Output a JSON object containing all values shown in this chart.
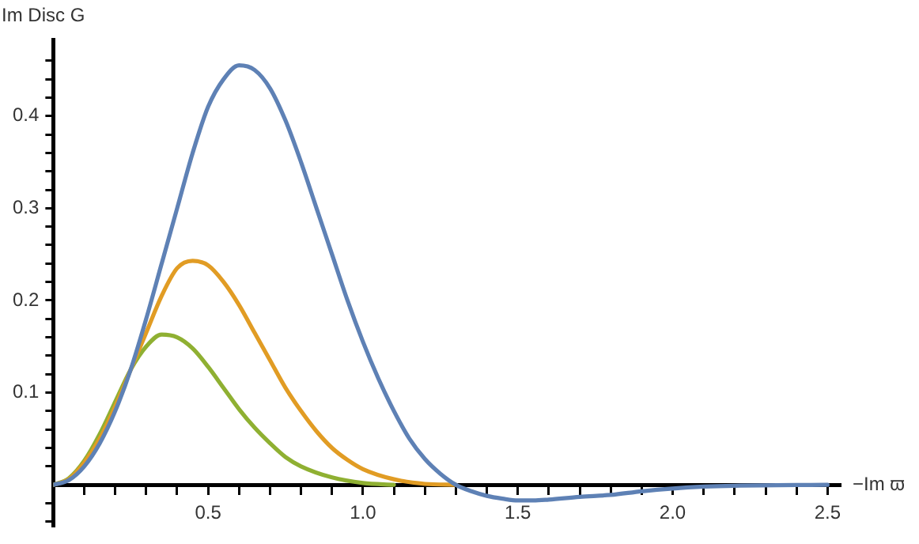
{
  "chart_data": {
    "type": "line",
    "xlabel": "−Im ϖ",
    "ylabel": "Im Disc G",
    "xlim": [
      0,
      2.54
    ],
    "ylim": [
      -0.045,
      0.483
    ],
    "xticks": [
      {
        "value": 0.1,
        "label": null
      },
      {
        "value": 0.2,
        "label": null
      },
      {
        "value": 0.3,
        "label": null
      },
      {
        "value": 0.4,
        "label": null
      },
      {
        "value": 0.5,
        "label": "0.5"
      },
      {
        "value": 0.6,
        "label": null
      },
      {
        "value": 0.7,
        "label": null
      },
      {
        "value": 0.8,
        "label": null
      },
      {
        "value": 0.9,
        "label": null
      },
      {
        "value": 1.0,
        "label": "1.0"
      },
      {
        "value": 1.1,
        "label": null
      },
      {
        "value": 1.2,
        "label": null
      },
      {
        "value": 1.3,
        "label": null
      },
      {
        "value": 1.4,
        "label": null
      },
      {
        "value": 1.5,
        "label": "1.5"
      },
      {
        "value": 1.6,
        "label": null
      },
      {
        "value": 1.7,
        "label": null
      },
      {
        "value": 1.8,
        "label": null
      },
      {
        "value": 1.9,
        "label": null
      },
      {
        "value": 2.0,
        "label": "2.0"
      },
      {
        "value": 2.1,
        "label": null
      },
      {
        "value": 2.2,
        "label": null
      },
      {
        "value": 2.3,
        "label": null
      },
      {
        "value": 2.4,
        "label": null
      },
      {
        "value": 2.5,
        "label": "2.5"
      }
    ],
    "yticks": [
      {
        "value": -0.04,
        "label": null
      },
      {
        "value": -0.02,
        "label": null
      },
      {
        "value": 0.02,
        "label": null
      },
      {
        "value": 0.04,
        "label": null
      },
      {
        "value": 0.06,
        "label": null
      },
      {
        "value": 0.08,
        "label": null
      },
      {
        "value": 0.1,
        "label": "0.1"
      },
      {
        "value": 0.12,
        "label": null
      },
      {
        "value": 0.14,
        "label": null
      },
      {
        "value": 0.16,
        "label": null
      },
      {
        "value": 0.18,
        "label": null
      },
      {
        "value": 0.2,
        "label": "0.2"
      },
      {
        "value": 0.22,
        "label": null
      },
      {
        "value": 0.24,
        "label": null
      },
      {
        "value": 0.26,
        "label": null
      },
      {
        "value": 0.28,
        "label": null
      },
      {
        "value": 0.3,
        "label": "0.3"
      },
      {
        "value": 0.32,
        "label": null
      },
      {
        "value": 0.34,
        "label": null
      },
      {
        "value": 0.36,
        "label": null
      },
      {
        "value": 0.38,
        "label": null
      },
      {
        "value": 0.4,
        "label": "0.4"
      },
      {
        "value": 0.42,
        "label": null
      },
      {
        "value": 0.44,
        "label": null
      },
      {
        "value": 0.46,
        "label": null
      }
    ],
    "grid": false,
    "legend": false,
    "marker": "none",
    "line_style": "solid",
    "series": [
      {
        "color": "#5e81b5",
        "x": [
          0,
          0.05,
          0.1,
          0.15,
          0.2,
          0.25,
          0.3,
          0.35,
          0.4,
          0.45,
          0.5,
          0.55,
          0.6,
          0.65,
          0.7,
          0.75,
          0.8,
          0.85,
          0.9,
          0.95,
          1.0,
          1.05,
          1.1,
          1.15,
          1.2,
          1.25,
          1.3,
          1.35,
          1.4,
          1.45,
          1.5,
          1.55,
          1.6,
          1.7,
          1.8,
          1.9,
          2.0,
          2.1,
          2.2,
          2.5
        ],
        "values": [
          0,
          0.005,
          0.02,
          0.045,
          0.08,
          0.125,
          0.18,
          0.24,
          0.3,
          0.36,
          0.41,
          0.44,
          0.455,
          0.45,
          0.43,
          0.395,
          0.35,
          0.3,
          0.25,
          0.2,
          0.155,
          0.115,
          0.08,
          0.05,
          0.028,
          0.012,
          0,
          -0.007,
          -0.012,
          -0.015,
          -0.017,
          -0.017,
          -0.016,
          -0.013,
          -0.011,
          -0.007,
          -0.004,
          -0.002,
          -0.001,
          0
        ]
      },
      {
        "color": "#e19c24",
        "x": [
          0,
          0.05,
          0.1,
          0.15,
          0.2,
          0.25,
          0.3,
          0.35,
          0.4,
          0.45,
          0.5,
          0.55,
          0.6,
          0.65,
          0.7,
          0.75,
          0.8,
          0.85,
          0.9,
          0.95,
          1.0,
          1.1,
          1.2,
          1.3
        ],
        "values": [
          0,
          0.006,
          0.024,
          0.05,
          0.085,
          0.125,
          0.165,
          0.205,
          0.235,
          0.243,
          0.238,
          0.22,
          0.195,
          0.165,
          0.135,
          0.105,
          0.08,
          0.058,
          0.04,
          0.027,
          0.017,
          0.006,
          0.001,
          0
        ]
      },
      {
        "color": "#8fb032",
        "x": [
          0,
          0.05,
          0.1,
          0.15,
          0.2,
          0.25,
          0.3,
          0.35,
          0.4,
          0.45,
          0.5,
          0.55,
          0.6,
          0.65,
          0.7,
          0.75,
          0.8,
          0.9,
          1.0,
          1.1
        ],
        "values": [
          0,
          0.007,
          0.026,
          0.055,
          0.09,
          0.125,
          0.15,
          0.163,
          0.16,
          0.148,
          0.128,
          0.105,
          0.082,
          0.062,
          0.045,
          0.03,
          0.02,
          0.008,
          0.002,
          0
        ]
      }
    ]
  }
}
